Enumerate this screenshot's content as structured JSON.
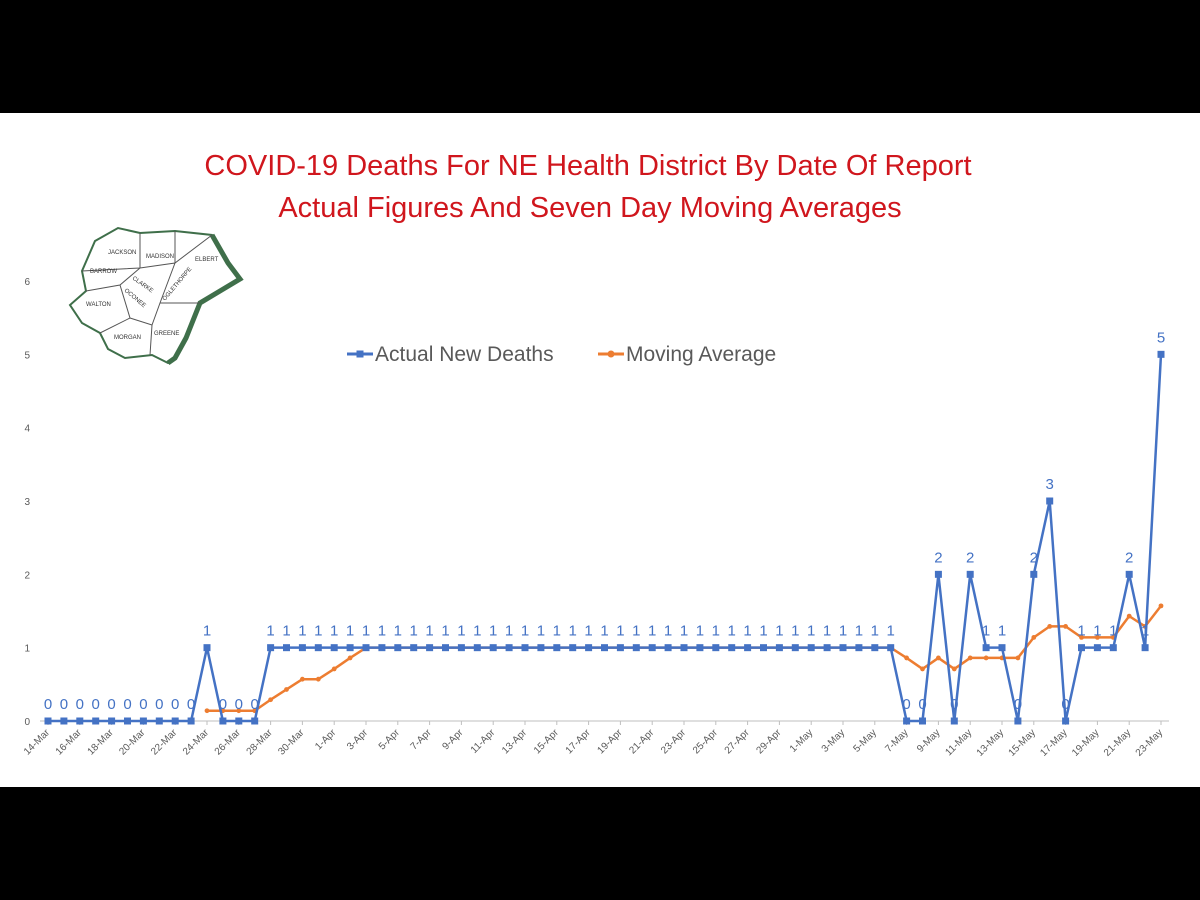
{
  "colors": {
    "title": "#d0161d",
    "actual": "#4472c4",
    "moving": "#ed7d31",
    "map_outline": "#3f6f4a",
    "axis_text": "#595959"
  },
  "map": {
    "counties": [
      "JACKSON",
      "MADISON",
      "ELBERT",
      "BARROW",
      "CLARKE",
      "OCONEE",
      "OGLETHORPE",
      "WALTON",
      "MORGAN",
      "GREENE"
    ]
  },
  "chart_data": {
    "type": "line",
    "title": "COVID-19 Deaths For NE Health District By Date Of Report",
    "subtitle": "Actual Figures And Seven Day Moving Averages",
    "ylim": [
      0,
      6
    ],
    "y_ticks": [
      0,
      1,
      2,
      3,
      4,
      5,
      6
    ],
    "grid": false,
    "legend_position": "top-center",
    "x": [
      "14-Mar",
      "15-Mar",
      "16-Mar",
      "17-Mar",
      "18-Mar",
      "19-Mar",
      "20-Mar",
      "21-Mar",
      "22-Mar",
      "23-Mar",
      "24-Mar",
      "25-Mar",
      "26-Mar",
      "27-Mar",
      "28-Mar",
      "29-Mar",
      "30-Mar",
      "31-Mar",
      "1-Apr",
      "2-Apr",
      "3-Apr",
      "4-Apr",
      "5-Apr",
      "6-Apr",
      "7-Apr",
      "8-Apr",
      "9-Apr",
      "10-Apr",
      "11-Apr",
      "12-Apr",
      "13-Apr",
      "14-Apr",
      "15-Apr",
      "16-Apr",
      "17-Apr",
      "18-Apr",
      "19-Apr",
      "20-Apr",
      "21-Apr",
      "22-Apr",
      "23-Apr",
      "24-Apr",
      "25-Apr",
      "26-Apr",
      "27-Apr",
      "28-Apr",
      "29-Apr",
      "30-Apr",
      "1-May",
      "2-May",
      "3-May",
      "4-May",
      "5-May",
      "6-May",
      "7-May",
      "8-May",
      "9-May",
      "10-May",
      "11-May",
      "12-May",
      "13-May",
      "14-May",
      "15-May",
      "16-May",
      "17-May",
      "18-May",
      "19-May",
      "20-May",
      "21-May",
      "22-May",
      "23-May"
    ],
    "x_tick_labels": [
      "14-Mar",
      "16-Mar",
      "18-Mar",
      "20-Mar",
      "22-Mar",
      "24-Mar",
      "26-Mar",
      "28-Mar",
      "30-Mar",
      "1-Apr",
      "3-Apr",
      "5-Apr",
      "7-Apr",
      "9-Apr",
      "11-Apr",
      "13-Apr",
      "15-Apr",
      "17-Apr",
      "19-Apr",
      "21-Apr",
      "23-Apr",
      "25-Apr",
      "27-Apr",
      "29-Apr",
      "1-May",
      "3-May",
      "5-May",
      "7-May",
      "9-May",
      "11-May",
      "13-May",
      "15-May",
      "17-May",
      "19-May",
      "21-May",
      "23-May"
    ],
    "series": [
      {
        "name": "Actual New Deaths",
        "values": [
          0,
          0,
          0,
          0,
          0,
          0,
          0,
          0,
          0,
          0,
          1,
          0,
          0,
          0,
          1,
          1,
          1,
          1,
          1,
          1,
          1,
          1,
          1,
          1,
          1,
          1,
          1,
          1,
          1,
          1,
          1,
          1,
          1,
          1,
          1,
          1,
          1,
          1,
          1,
          1,
          1,
          1,
          1,
          1,
          1,
          1,
          1,
          1,
          1,
          1,
          1,
          1,
          1,
          1,
          0,
          0,
          2,
          0,
          2,
          1,
          1,
          0,
          2,
          3,
          0,
          1,
          1,
          1,
          2,
          1,
          5
        ],
        "labels": [
          "0",
          "0",
          "0",
          "0",
          "0",
          "0",
          "0",
          "0",
          "0",
          "0",
          "1",
          "0",
          "0",
          "0",
          "1",
          "1",
          "1",
          "1",
          "1",
          "1",
          "1",
          "1",
          "1",
          "1",
          "1",
          "1",
          "1",
          "1",
          "1",
          "1",
          "1",
          "1",
          "1",
          "1",
          "1",
          "1",
          "1",
          "1",
          "1",
          "1",
          "1",
          "1",
          "1",
          "1",
          "1",
          "1",
          "1",
          "1",
          "1",
          "1",
          "1",
          "1",
          "1",
          "1",
          "0",
          "0",
          "2",
          "0",
          "2",
          "1",
          "1",
          "0",
          "2",
          "3",
          "0",
          "1",
          "1",
          "1",
          "2",
          "1",
          "5"
        ]
      },
      {
        "name": "Moving Average",
        "values": [
          null,
          null,
          null,
          null,
          null,
          null,
          null,
          null,
          null,
          null,
          0.14,
          0.14,
          0.14,
          0.14,
          0.29,
          0.43,
          0.57,
          0.57,
          0.71,
          0.86,
          1,
          1,
          1,
          1,
          1,
          1,
          1,
          1,
          1,
          1,
          1,
          1,
          1,
          1,
          1,
          1,
          1,
          1,
          1,
          1,
          1,
          1,
          1,
          1,
          1,
          1,
          1,
          1,
          1,
          1,
          1,
          1,
          1,
          1,
          0.86,
          0.71,
          0.86,
          0.71,
          0.86,
          0.86,
          0.86,
          0.86,
          1.14,
          1.29,
          1.29,
          1.14,
          1.14,
          1.14,
          1.43,
          1.29,
          1.57
        ]
      }
    ]
  }
}
